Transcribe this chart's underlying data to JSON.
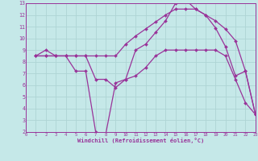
{
  "xlabel": "Windchill (Refroidissement éolien,°C)",
  "bg_color": "#c5e8e8",
  "line_color": "#993399",
  "grid_color": "#aed4d4",
  "xlim": [
    0,
    23
  ],
  "ylim": [
    2,
    13
  ],
  "xticks": [
    0,
    1,
    2,
    3,
    4,
    5,
    6,
    7,
    8,
    9,
    10,
    11,
    12,
    13,
    14,
    15,
    16,
    17,
    18,
    19,
    20,
    21,
    22,
    23
  ],
  "yticks": [
    2,
    3,
    4,
    5,
    6,
    7,
    8,
    9,
    10,
    11,
    12,
    13
  ],
  "curve1_x": [
    1,
    2,
    3,
    4,
    5,
    6,
    7,
    8,
    9,
    10,
    11,
    12,
    13,
    14,
    15,
    16,
    17,
    18,
    19,
    20,
    21,
    22,
    23
  ],
  "curve1_y": [
    8.5,
    9.0,
    8.5,
    8.5,
    7.2,
    7.2,
    2.0,
    1.8,
    6.2,
    6.5,
    9.0,
    9.5,
    10.5,
    11.5,
    13.0,
    13.3,
    12.5,
    12.0,
    10.9,
    9.3,
    6.8,
    7.2,
    3.5
  ],
  "curve2_x": [
    1,
    2,
    3,
    4,
    5,
    6,
    7,
    8,
    9,
    10,
    11,
    12,
    13,
    14,
    15,
    16,
    17,
    18,
    19,
    20,
    21,
    22,
    23
  ],
  "curve2_y": [
    8.5,
    8.5,
    8.5,
    8.5,
    8.5,
    8.5,
    8.5,
    8.5,
    8.5,
    9.5,
    10.2,
    10.8,
    11.4,
    12.0,
    12.5,
    12.5,
    12.5,
    12.0,
    11.5,
    10.8,
    9.8,
    7.2,
    3.5
  ],
  "curve3_x": [
    1,
    2,
    3,
    4,
    5,
    6,
    7,
    8,
    9,
    10,
    11,
    12,
    13,
    14,
    15,
    16,
    17,
    18,
    19,
    20,
    21,
    22,
    23
  ],
  "curve3_y": [
    8.5,
    8.5,
    8.5,
    8.5,
    8.5,
    8.5,
    6.5,
    6.5,
    5.8,
    6.5,
    6.8,
    7.5,
    8.5,
    9.0,
    9.0,
    9.0,
    9.0,
    9.0,
    9.0,
    8.5,
    6.5,
    4.5,
    3.5
  ]
}
